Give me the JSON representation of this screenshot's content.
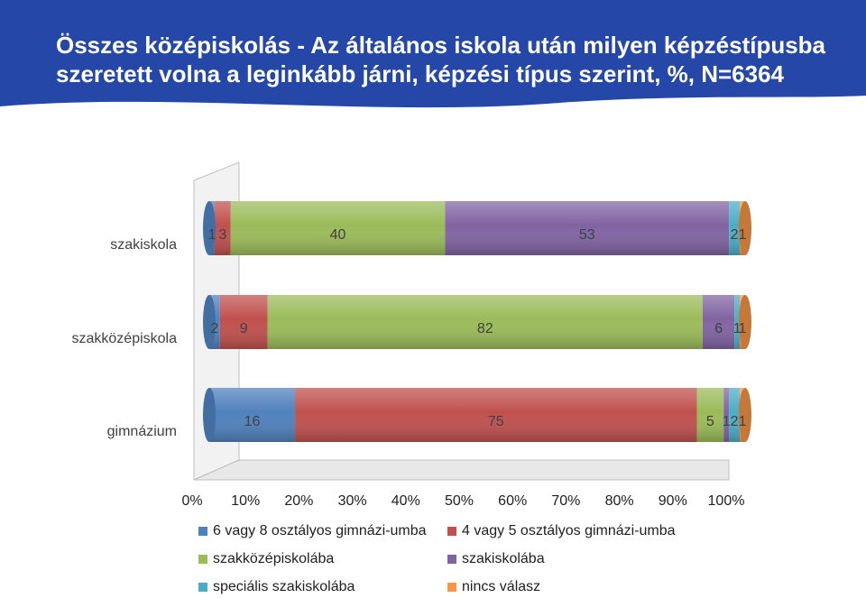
{
  "title": "Összes középiskolás - Az általános iskola után milyen képzéstípusba szeretett volna a leginkább járni, képzési típus szerint, %, N=6364",
  "chart_data": {
    "type": "bar",
    "orientation": "horizontal",
    "stacked": "percent",
    "categories": [
      "szakiskola",
      "szakközépiskola",
      "gimnázium"
    ],
    "series": [
      {
        "name": "6 vagy 8 osztályos gimnázi-umba",
        "color": "#4f81bd",
        "values": [
          1,
          2,
          16
        ],
        "labels": [
          "1",
          "2",
          "16"
        ]
      },
      {
        "name": "4 vagy 5 osztályos gimnázi-umba",
        "color": "#c0504d",
        "values": [
          3,
          9,
          75
        ],
        "labels": [
          "3",
          "9",
          "75"
        ]
      },
      {
        "name": "szakközépiskolába",
        "color": "#9bbb59",
        "values": [
          40,
          82,
          5
        ],
        "labels": [
          "40",
          "82",
          "5"
        ]
      },
      {
        "name": "szakiskolába",
        "color": "#8064a2",
        "values": [
          53,
          6,
          1
        ],
        "labels": [
          "53",
          "6",
          "1"
        ]
      },
      {
        "name": "speciális szakiskolába",
        "color": "#4bacc6",
        "values": [
          2,
          1,
          2
        ],
        "labels": [
          "2",
          "1",
          "2"
        ]
      },
      {
        "name": "nincs válasz",
        "color": "#f79646",
        "values": [
          1,
          1,
          1
        ],
        "labels": [
          "1",
          "1",
          "1"
        ]
      }
    ],
    "x_ticks": [
      "0%",
      "10%",
      "20%",
      "30%",
      "40%",
      "50%",
      "60%",
      "70%",
      "80%",
      "90%",
      "100%"
    ],
    "xlim": [
      0,
      100
    ],
    "grid": false,
    "legend": "bottom"
  }
}
